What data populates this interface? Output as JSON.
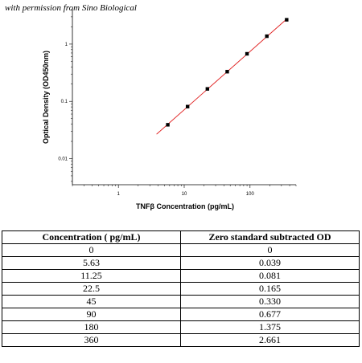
{
  "watermark": "with permission from Sino Biological",
  "chart_data": {
    "type": "scatter",
    "xscale": "log",
    "yscale": "log",
    "xlabel": "TNFβ Concentration (pg/mL)",
    "ylabel": "Optical Density (OD450nm)",
    "xlim": [
      0.2,
      500
    ],
    "ylim": [
      0.0035,
      4
    ],
    "x_ticks": [
      {
        "value": 1,
        "label": "1"
      },
      {
        "value": 10,
        "label": "10"
      },
      {
        "value": 100,
        "label": "100"
      }
    ],
    "y_ticks": [
      {
        "value": 0.01,
        "label": "0.01"
      },
      {
        "value": 0.1,
        "label": "0.1"
      },
      {
        "value": 1,
        "label": "1"
      }
    ],
    "grid": false,
    "point_color": "#000000",
    "fit_line_color": "#e02020",
    "points": [
      {
        "x": 5.63,
        "y": 0.039
      },
      {
        "x": 11.25,
        "y": 0.081
      },
      {
        "x": 22.5,
        "y": 0.165
      },
      {
        "x": 45,
        "y": 0.33
      },
      {
        "x": 90,
        "y": 0.677
      },
      {
        "x": 180,
        "y": 1.375
      },
      {
        "x": 360,
        "y": 2.661
      }
    ],
    "fit_line": {
      "x_start": 3.8,
      "x_end": 360
    }
  },
  "table": {
    "headers": [
      "Concentration ( pg/mL)",
      "Zero standard subtracted OD"
    ],
    "rows": [
      [
        "0",
        "0"
      ],
      [
        "5.63",
        "0.039"
      ],
      [
        "11.25",
        "0.081"
      ],
      [
        "22.5",
        "0.165"
      ],
      [
        "45",
        "0.330"
      ],
      [
        "90",
        "0.677"
      ],
      [
        "180",
        "1.375"
      ],
      [
        "360",
        "2.661"
      ]
    ]
  }
}
